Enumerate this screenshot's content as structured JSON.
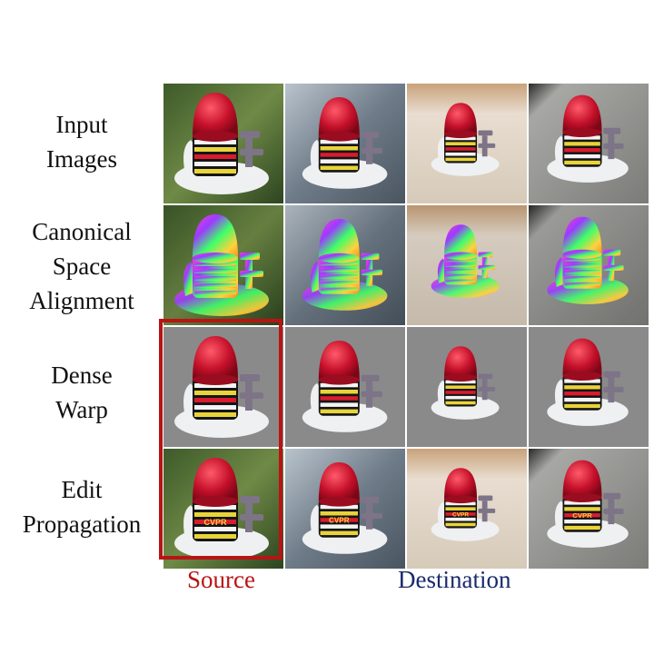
{
  "rows": [
    {
      "label_lines": [
        "Input",
        "Images"
      ]
    },
    {
      "label_lines": [
        "Canonical",
        "Space",
        "Alignment"
      ]
    },
    {
      "label_lines": [
        "Dense",
        "Warp"
      ]
    },
    {
      "label_lines": [
        "Edit",
        "Propagation"
      ]
    }
  ],
  "captions": {
    "source": "Source",
    "destination": "Destination"
  },
  "edit_text": "CVPR",
  "colors": {
    "source_accent": "#b81414",
    "destination_accent": "#1a2a6c"
  },
  "columns": [
    {
      "role": "source",
      "background": "grass"
    },
    {
      "role": "destination",
      "background": "rock"
    },
    {
      "role": "destination",
      "background": "cloth"
    },
    {
      "role": "destination",
      "background": "table"
    }
  ]
}
